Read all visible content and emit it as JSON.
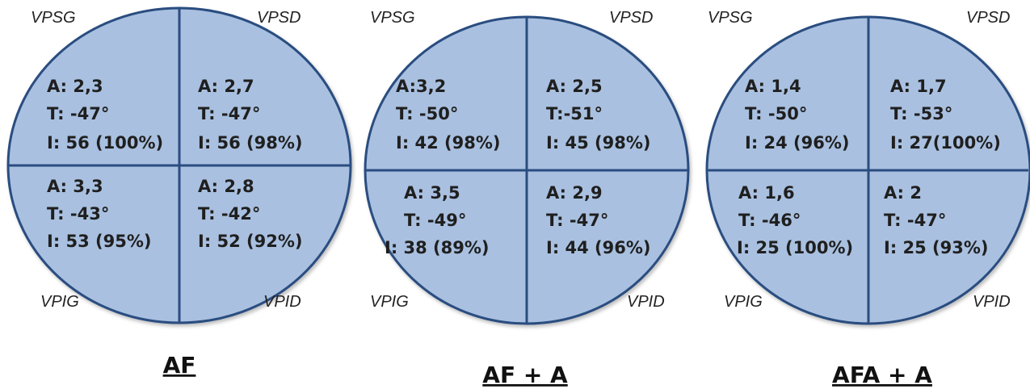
{
  "colors": {
    "fill": "#a9c0e0",
    "stroke": "#2a4d80"
  },
  "diagrams": [
    {
      "title": "AF",
      "corners": {
        "tl": "VPSG",
        "tr": "VPSD",
        "bl": "VPIG",
        "br": "VPID"
      },
      "quadrants": {
        "tl": [
          "A: 2,3",
          "T: -47°",
          "I: 56 (100%)"
        ],
        "tr": [
          "A: 2,7",
          "T: -47°",
          "I: 56 (98%)"
        ],
        "bl": [
          "A: 3,3",
          "T: -43°",
          "I: 53 (95%)"
        ],
        "br": [
          "A: 2,8",
          "T: -42°",
          "I: 52 (92%)"
        ]
      }
    },
    {
      "title": "AF + A",
      "corners": {
        "tl": "VPSG",
        "tr": "VPSD",
        "bl": "VPIG",
        "br": "VPID"
      },
      "quadrants": {
        "tl": [
          "A:3,2",
          "T: -50°",
          "I: 42 (98%)"
        ],
        "tr": [
          "A: 2,5",
          "T:-51°",
          "I: 45 (98%)"
        ],
        "bl": [
          "A: 3,5",
          "T: -49°",
          "I: 38 (89%)"
        ],
        "br": [
          "A: 2,9",
          "T: -47°",
          "I: 44 (96%)"
        ]
      }
    },
    {
      "title": "AFA + A",
      "corners": {
        "tl": "VPSG",
        "tr": "VPSD",
        "bl": "VPIG",
        "br": "VPID"
      },
      "quadrants": {
        "tl": [
          "A: 1,4",
          "T: -50°",
          "I: 24 (96%)"
        ],
        "tr": [
          "A: 1,7",
          "T: -53°",
          "I: 27(100%)"
        ],
        "bl": [
          "A: 1,6",
          "T: -46°",
          "I: 25 (100%)"
        ],
        "br": [
          "A: 2",
          "T: -47°",
          "I: 25 (93%)"
        ]
      }
    }
  ]
}
